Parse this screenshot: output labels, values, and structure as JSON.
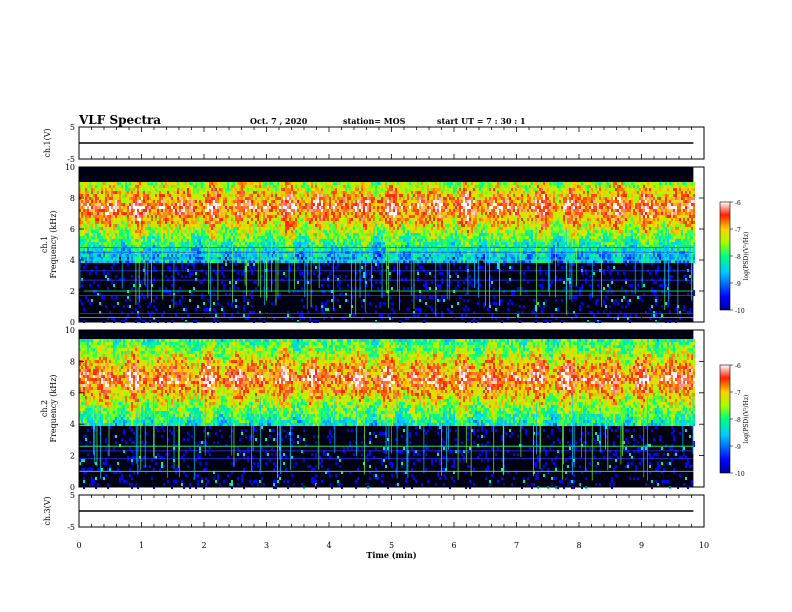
{
  "header": {
    "title": "VLF Spectra",
    "date": "Oct. 7 , 2020",
    "station": "station= MOS",
    "start": "start  UT =   7 : 30 : 1"
  },
  "chart_data": [
    {
      "type": "line",
      "panel": "ch1-waveform",
      "ylabel": "ch.1(V)",
      "ylim": [
        -5,
        5
      ],
      "y_ticks": [
        "5",
        "-5"
      ],
      "series": [
        {
          "x": [
            0,
            9.83
          ],
          "values": [
            0,
            0
          ]
        }
      ]
    },
    {
      "type": "heatmap",
      "panel": "ch1-spectrogram",
      "ylabel": "ch.1\nFrequency (kHz)",
      "ylim": [
        0,
        10
      ],
      "xlim": [
        0,
        10
      ],
      "y_ticks": [
        "0",
        "2",
        "4",
        "6",
        "8",
        "10"
      ],
      "data_extent_min": 9.83,
      "band_khz": [
        4,
        9.2
      ],
      "peak_khz": 7.5,
      "colorbar": {
        "label": "log(PSD)(V²/Hz)",
        "ticks": [
          "-6",
          "-7",
          "-8",
          "-9",
          "-10"
        ],
        "range": [
          -10,
          -6
        ]
      },
      "narrowband_khz": [
        0.3,
        0.55,
        1.7,
        2.0,
        2.7,
        3.3,
        4.0,
        4.5,
        4.8
      ]
    },
    {
      "type": "heatmap",
      "panel": "ch2-spectrogram",
      "ylabel": "ch.2\nFrequency (kHz)",
      "ylim": [
        0,
        10
      ],
      "xlim": [
        0,
        10
      ],
      "y_ticks": [
        "0",
        "2",
        "4",
        "6",
        "8",
        "10"
      ],
      "data_extent_min": 9.83,
      "band_khz": [
        4,
        9.6
      ],
      "peak_khz": 7.0,
      "colorbar": {
        "label": "log(PSD)(V²/Hz)",
        "ticks": [
          "-6",
          "-7",
          "-8",
          "-9",
          "-10"
        ],
        "range": [
          -10,
          -6
        ]
      },
      "narrowband_khz": [
        1.0,
        1.8,
        2.3,
        2.6
      ]
    },
    {
      "type": "line",
      "panel": "ch3-waveform",
      "ylabel": "ch.3(V)",
      "ylim": [
        -5,
        5
      ],
      "y_ticks": [
        "5",
        "-5"
      ],
      "series": [
        {
          "x": [
            0,
            9.83
          ],
          "values": [
            0,
            0
          ]
        }
      ]
    }
  ],
  "x_axis": {
    "label": "Time (min)",
    "ticks": [
      "0",
      "1",
      "2",
      "3",
      "4",
      "5",
      "6",
      "7",
      "8",
      "9",
      "10"
    ],
    "range": [
      0,
      10
    ]
  }
}
